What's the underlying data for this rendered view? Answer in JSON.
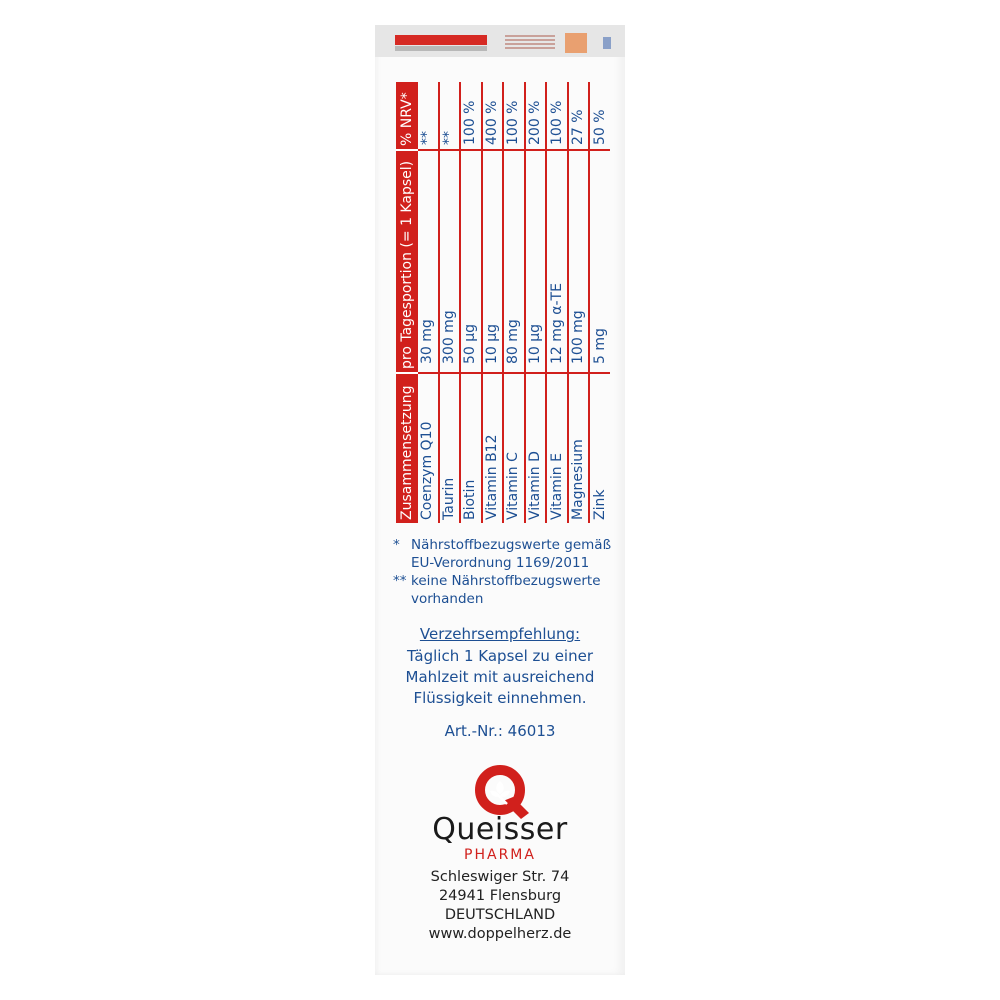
{
  "table": {
    "headers": [
      "Zusammensetzung",
      "pro Tagesportion (= 1 Kapsel)",
      "% NRV*"
    ],
    "rows": [
      {
        "name": "Coenzym Q10",
        "amount": "30 mg",
        "nrv": "**"
      },
      {
        "name": "Taurin",
        "amount": "300 mg",
        "nrv": "**"
      },
      {
        "name": "Biotin",
        "amount": "50 µg",
        "nrv": "100 %"
      },
      {
        "name": "Vitamin B12",
        "amount": "10 µg",
        "nrv": "400 %"
      },
      {
        "name": "Vitamin C",
        "amount": "80 mg",
        "nrv": "100 %"
      },
      {
        "name": "Vitamin D",
        "amount": "10 µg",
        "nrv": "200 %"
      },
      {
        "name": "Vitamin E",
        "amount": "12 mg α-TE",
        "nrv": "100 %"
      },
      {
        "name": "Magnesium",
        "amount": "100 mg",
        "nrv": "27 %"
      },
      {
        "name": "Zink",
        "amount": "5 mg",
        "nrv": "50 %"
      }
    ]
  },
  "notes": [
    {
      "marker": "*",
      "text": "Nährstoffbezugswerte gemäß EU-Verordnung 1169/2011"
    },
    {
      "marker": "**",
      "text": "keine Nährstoffbezugswerte vorhanden"
    }
  ],
  "recommendation": {
    "title": "Verzehrsempfehlung:",
    "lines": [
      "Täglich 1 Kapsel zu einer",
      "Mahlzeit mit ausreichend",
      "Flüssigkeit einnehmen."
    ]
  },
  "article_number": "Art.-Nr.: 46013",
  "brand": {
    "name": "Queisser",
    "sub": "PHARMA",
    "logo_icon": "queisser-q-leaf-logo"
  },
  "address": [
    "Schleswiger Str. 74",
    "24941 Flensburg",
    "DEUTSCHLAND",
    "www.doppelherz.de"
  ],
  "colors": {
    "red": "#d1201c",
    "blue": "#1d4f93",
    "text_dark": "#222222"
  }
}
